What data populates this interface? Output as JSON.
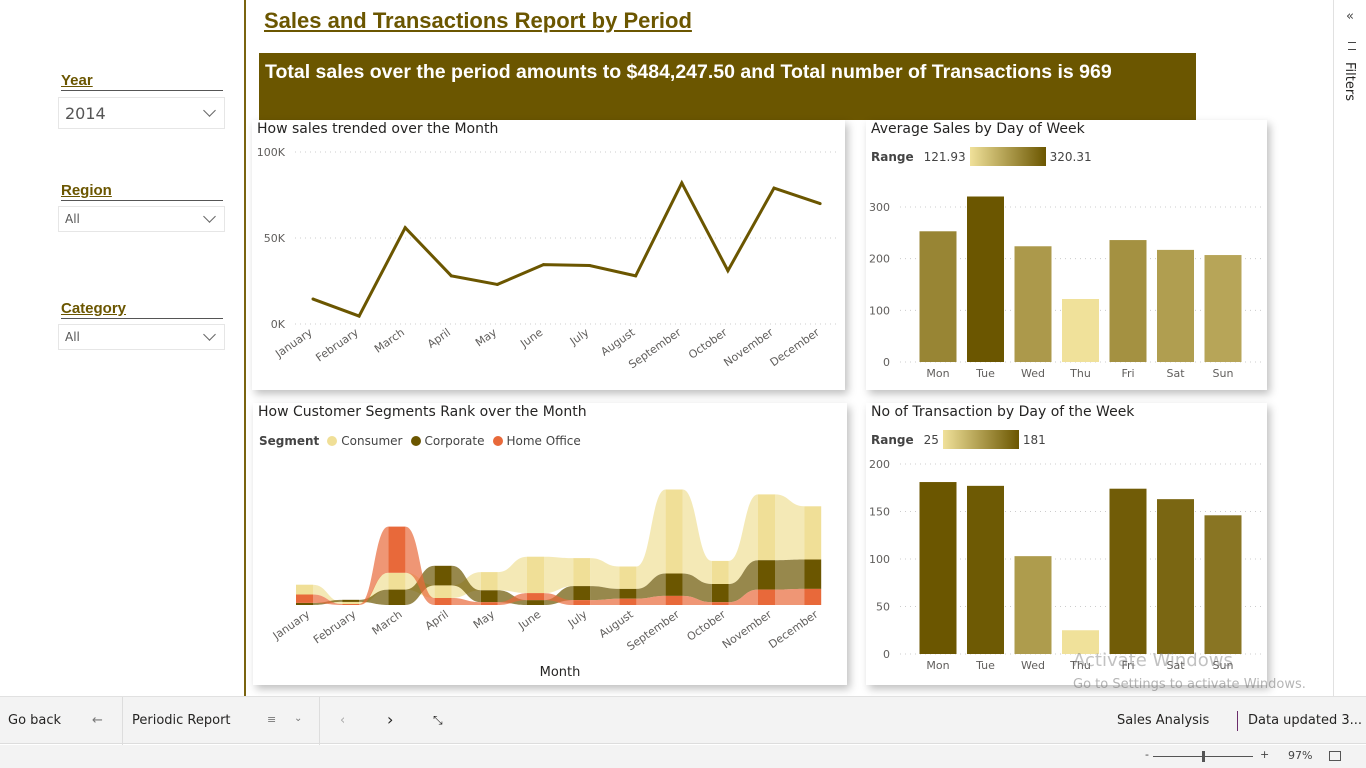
{
  "header": {
    "title": "Sales and Transactions Report by Period",
    "banner": "Total sales over the period amounts to $484,247.50 and Total number of Transactions is 969"
  },
  "slicers": [
    {
      "label": "Year",
      "value": "2014"
    },
    {
      "label": "Region",
      "value": "All"
    },
    {
      "label": "Category",
      "value": "All"
    }
  ],
  "colors": {
    "brand": "#6B5600",
    "consumer": "#F0DF97",
    "corporate": "#6B5600",
    "home_office": "#E8693A",
    "gradient_min": "#F0E19A",
    "gradient_max": "#6B5600"
  },
  "filters_pane": {
    "label": "Filters",
    "collapse_icon": "double-chevron-left-icon",
    "filter_icon": "filter-icon"
  },
  "chart_data": [
    {
      "type": "line",
      "title": "How sales trended over the Month",
      "categories": [
        "January",
        "February",
        "March",
        "April",
        "May",
        "June",
        "July",
        "August",
        "September",
        "October",
        "November",
        "December"
      ],
      "values": [
        14500,
        4600,
        56000,
        28000,
        23000,
        34500,
        34000,
        28000,
        82000,
        31000,
        79000,
        70000
      ],
      "yticks": [
        "0K",
        "50K",
        "100K"
      ],
      "ylim": [
        0,
        100000
      ],
      "grid": true,
      "color": "#6B5600"
    },
    {
      "type": "bar",
      "title": "Average Sales by Day of Week",
      "legend_label": "Range",
      "range_min": "121.93",
      "range_max": "320.31",
      "categories": [
        "Mon",
        "Tue",
        "Wed",
        "Thu",
        "Fri",
        "Sat",
        "Sun"
      ],
      "values": [
        253,
        320.31,
        224,
        121.93,
        236,
        217,
        207
      ],
      "yticks": [
        "0",
        "100",
        "200",
        "300"
      ],
      "ylim": [
        0,
        300
      ],
      "grid": true
    },
    {
      "type": "area",
      "subtype": "ribbon",
      "title": "How Customer Segments Rank over the Month",
      "legend_label": "Segment",
      "xlabel": "Month",
      "categories": [
        "January",
        "February",
        "March",
        "April",
        "May",
        "June",
        "July",
        "August",
        "September",
        "October",
        "November",
        "December"
      ],
      "series": [
        {
          "name": "Consumer",
          "values": [
            7,
            1.5,
            12,
            9,
            13,
            26,
            20,
            16,
            60,
            16.5,
            47,
            38
          ]
        },
        {
          "name": "Corporate",
          "values": [
            1.5,
            1.5,
            11,
            14,
            8.5,
            3.5,
            10,
            7,
            16,
            13,
            21,
            21
          ]
        },
        {
          "name": "Home Office",
          "values": [
            6,
            0.7,
            33,
            5,
            2,
            5,
            3.5,
            4.5,
            6.5,
            2,
            11,
            11.5
          ]
        }
      ],
      "unit": "K"
    },
    {
      "type": "bar",
      "title": "No of Transaction by Day of the Week",
      "legend_label": "Range",
      "range_min": "25",
      "range_max": "181",
      "categories": [
        "Mon",
        "Tue",
        "Wed",
        "Thu",
        "Fri",
        "Sat",
        "Sun"
      ],
      "values": [
        181,
        177,
        103,
        25,
        174,
        163,
        146
      ],
      "yticks": [
        "0",
        "50",
        "100",
        "150",
        "200"
      ],
      "ylim": [
        0,
        200
      ],
      "grid": true
    }
  ],
  "bottom_bar": {
    "go_back": "Go back",
    "page": "Periodic Report",
    "report_name": "Sales Analysis",
    "data_updated": "Data updated 3..."
  },
  "zoom": {
    "level": "97%",
    "value": 0.97,
    "minus": "-",
    "plus": "+"
  },
  "watermark": {
    "line1": "Activate Windows",
    "line2": "Go to Settings to activate Windows."
  }
}
